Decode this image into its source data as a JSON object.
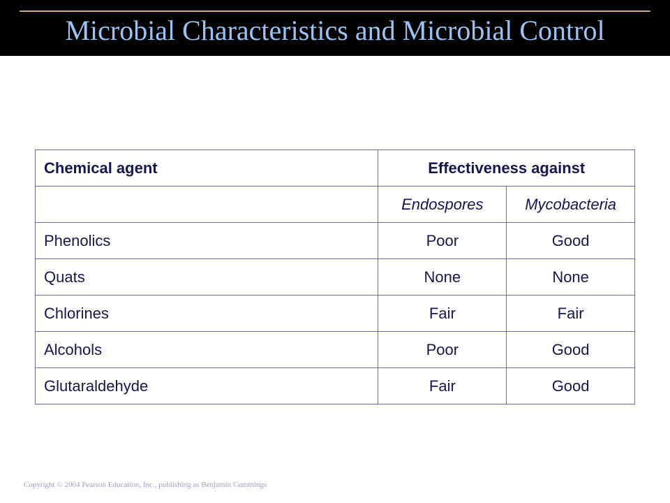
{
  "slide": {
    "title": "Microbial Characteristics and Microbial Control",
    "copyright": "Copyright © 2004 Pearson Education, Inc., publishing as Benjamin Cummings"
  },
  "table": {
    "header": {
      "agent": "Chemical agent",
      "effectiveness": "Effectiveness against"
    },
    "subheader": {
      "blank": "",
      "endospores": "Endospores",
      "mycobacteria": "Mycobacteria"
    },
    "rows": [
      {
        "agent": "Phenolics",
        "endospores": "Poor",
        "mycobacteria": "Good"
      },
      {
        "agent": "Quats",
        "endospores": "None",
        "mycobacteria": "None"
      },
      {
        "agent": "Chlorines",
        "endospores": "Fair",
        "mycobacteria": "Fair"
      },
      {
        "agent": "Alcohols",
        "endospores": "Poor",
        "mycobacteria": "Good"
      },
      {
        "agent": "Glutaraldehyde",
        "endospores": "Fair",
        "mycobacteria": "Good"
      }
    ]
  },
  "colors": {
    "title_bar": "#000000",
    "title_text": "#9cc3f5",
    "accent_rule": "#c9a46a",
    "table_text": "#17174f",
    "table_border": "#6c6ca4"
  }
}
